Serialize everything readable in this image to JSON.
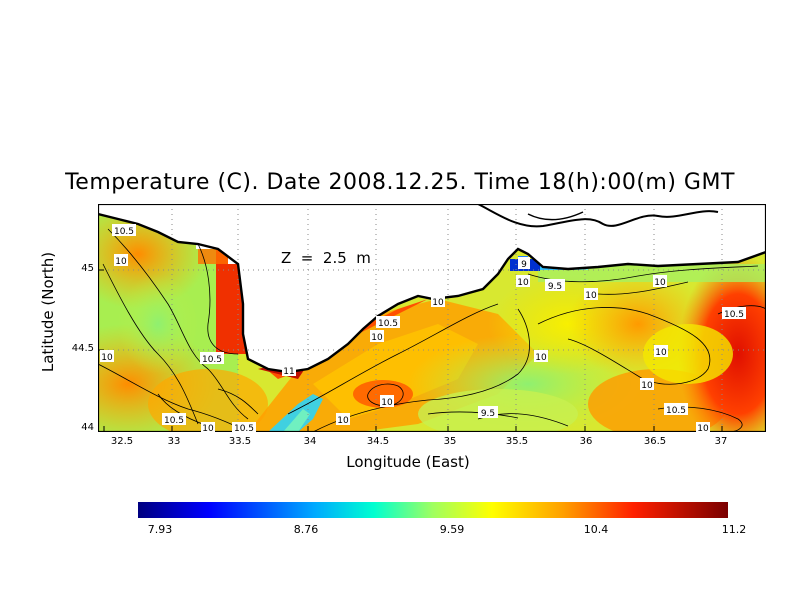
{
  "title": "Temperature (C). Date 2008.12.25. Time 18(h):00(m) GMT",
  "xlabel": "Longitude (East)",
  "ylabel": "Latitude (North)",
  "depth_label": "Z  =  2.5  m",
  "x_ticks": [
    "32.5",
    "33",
    "33.5",
    "34",
    "34.5",
    "35",
    "35.5",
    "36",
    "36.5",
    "37"
  ],
  "y_ticks": [
    "45",
    "44.5",
    "44"
  ],
  "colorbar": {
    "ticks": [
      "7.93",
      "8.76",
      "9.59",
      "10.4",
      "11.2"
    ]
  },
  "contour_labels": [
    "10.5",
    "10",
    "10.5",
    "10.5",
    "10",
    "11",
    "10.5",
    "10",
    "10",
    "10",
    "10",
    "10.5",
    "10",
    "10",
    "9",
    "10",
    "9.5",
    "10",
    "10",
    "10.5",
    "10",
    "10",
    "9.5",
    "10.5",
    "10"
  ],
  "colors": {
    "land": "#ffffff",
    "coastline": "#000000",
    "grid": "#9a9a9a"
  },
  "map": {
    "type": "temperature map",
    "lon_range": [
      32.5,
      37.3
    ],
    "lat_range": [
      44.0,
      45.45
    ],
    "grid": true
  }
}
